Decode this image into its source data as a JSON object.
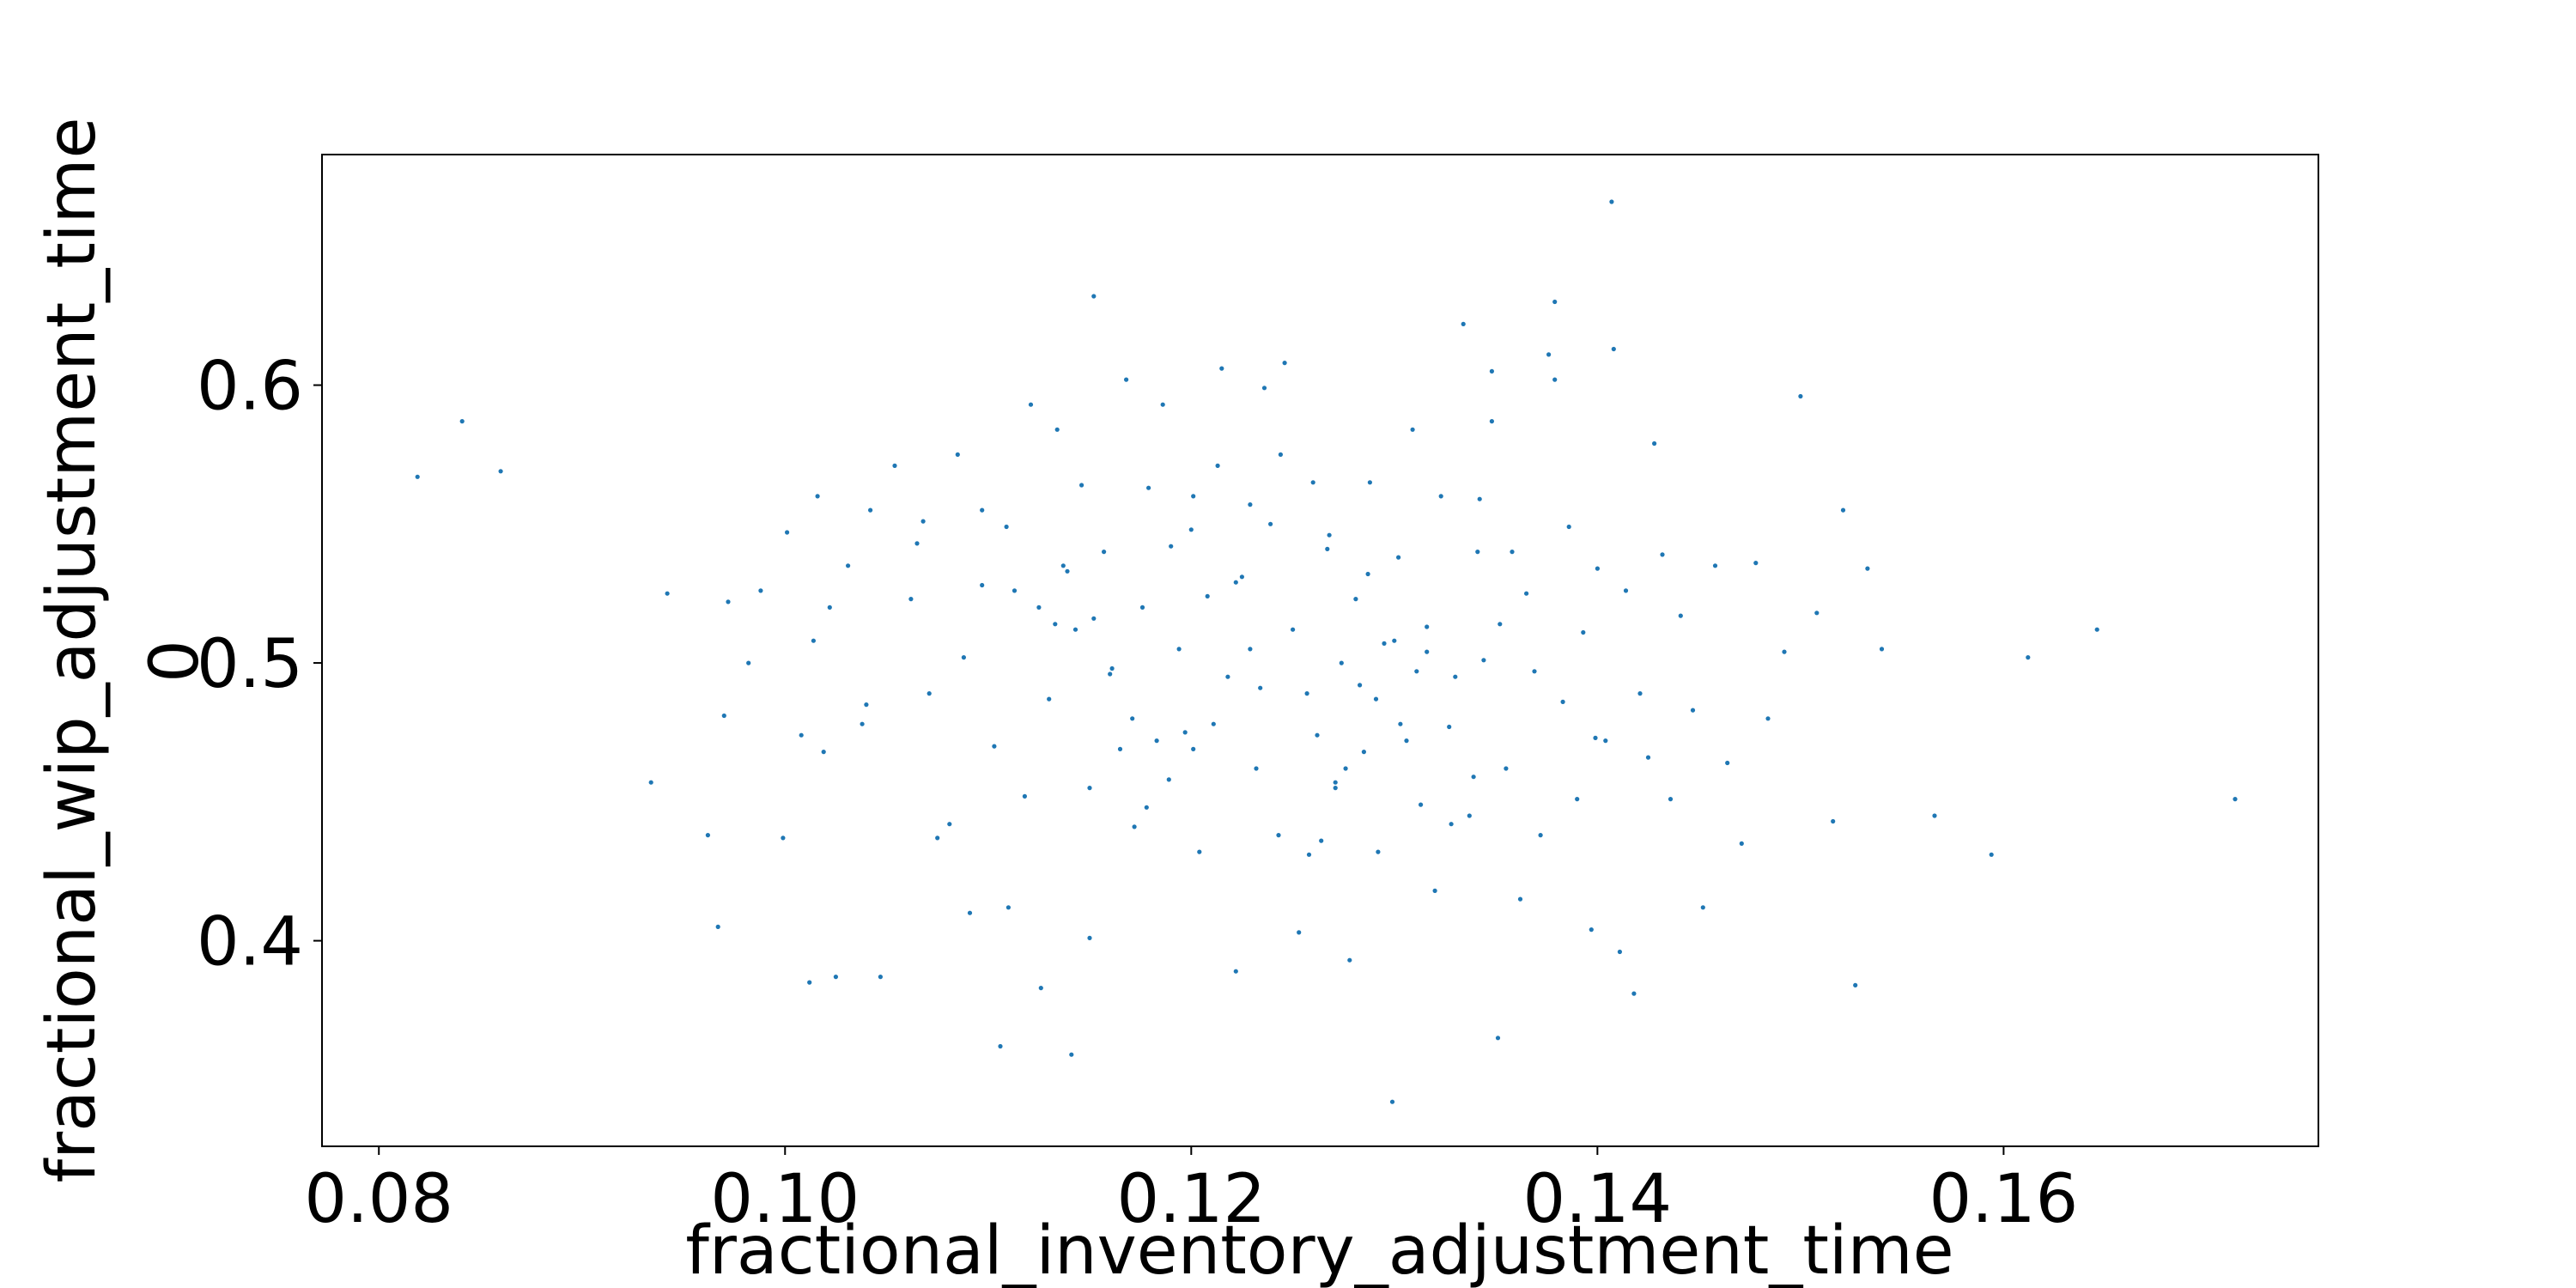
{
  "chart_data": {
    "type": "scatter",
    "title": "",
    "xlabel": "fractional_inventory_adjustment_time",
    "ylabel": "fractional_wip_adjustment_time",
    "ylabel_suffix": "0",
    "xlim": [
      0.0772,
      0.1755
    ],
    "ylim": [
      0.326,
      0.683
    ],
    "x_ticks": [
      0.08,
      0.1,
      0.12,
      0.14,
      0.16
    ],
    "x_tick_labels": [
      "0.08",
      "0.10",
      "0.12",
      "0.14",
      "0.16"
    ],
    "y_ticks": [
      0.4,
      0.5,
      0.6
    ],
    "y_tick_labels": [
      "0.4",
      "0.5",
      "0.6"
    ],
    "grid": false,
    "legend": "none",
    "marker_color": "#1f77b4",
    "marker": "point",
    "series": [
      {
        "x": [
          0.0819,
          0.0841,
          0.086,
          0.0934,
          0.0942,
          0.0962,
          0.0967,
          0.097,
          0.0972,
          0.0982,
          0.0988,
          0.0999,
          0.1001,
          0.1008,
          0.1012,
          0.1014,
          0.1016,
          0.1022,
          0.1025,
          0.1031,
          0.1038,
          0.1042,
          0.1047,
          0.1054,
          0.1062,
          0.1068,
          0.1071,
          0.1075,
          0.1081,
          0.1085,
          0.1088,
          0.1091,
          0.1097,
          0.1103,
          0.1106,
          0.1109,
          0.1113,
          0.1118,
          0.1121,
          0.1126,
          0.113,
          0.1133,
          0.1137,
          0.1141,
          0.1146,
          0.115,
          0.1152,
          0.1157,
          0.1161,
          0.1165,
          0.1168,
          0.1172,
          0.1176,
          0.1179,
          0.1183,
          0.1186,
          0.119,
          0.1194,
          0.1197,
          0.1201,
          0.1204,
          0.1208,
          0.1211,
          0.1215,
          0.1218,
          0.1222,
          0.1225,
          0.1229,
          0.1232,
          0.1236,
          0.1239,
          0.1243,
          0.1246,
          0.125,
          0.1253,
          0.1257,
          0.126,
          0.1264,
          0.1267,
          0.1271,
          0.1274,
          0.1278,
          0.1281,
          0.1285,
          0.1288,
          0.1292,
          0.1295,
          0.1299,
          0.1302,
          0.1306,
          0.1309,
          0.1313,
          0.1316,
          0.132,
          0.1323,
          0.1327,
          0.133,
          0.1334,
          0.1337,
          0.1341,
          0.1344,
          0.1348,
          0.1351,
          0.1355,
          0.1358,
          0.1362,
          0.1365,
          0.1369,
          0.1372,
          0.1376,
          0.1379,
          0.1383,
          0.1386,
          0.139,
          0.1393,
          0.1397,
          0.14,
          0.1404,
          0.1407,
          0.1411,
          0.1414,
          0.1418,
          0.1421,
          0.1425,
          0.1428,
          0.1432,
          0.1436,
          0.1441,
          0.1447,
          0.1452,
          0.1458,
          0.1464,
          0.1471,
          0.1478,
          0.1484,
          0.1492,
          0.15,
          0.1508,
          0.1516,
          0.1521,
          0.1527,
          0.1533,
          0.154,
          0.1566,
          0.1594,
          0.1612,
          0.1646,
          0.1714,
          0.1408,
          0.1379,
          0.1348,
          0.1262,
          0.1283,
          0.1229,
          0.111,
          0.1134,
          0.12,
          0.1271,
          0.1152,
          0.1171,
          0.1222,
          0.1276,
          0.1311,
          0.1342,
          0.1352,
          0.1399,
          0.115,
          0.1097,
          0.1065,
          0.104,
          0.1019,
          0.1213,
          0.1258,
          0.13,
          0.1328,
          0.1244,
          0.1189,
          0.116,
          0.1139,
          0.1125,
          0.1234,
          0.1268,
          0.1291,
          0.1316,
          0.1201,
          0.1178,
          0.1143,
          0.1287,
          0.1303,
          0.1339
        ],
        "y": [
          0.567,
          0.587,
          0.569,
          0.457,
          0.525,
          0.438,
          0.405,
          0.481,
          0.522,
          0.5,
          0.526,
          0.437,
          0.547,
          0.474,
          0.385,
          0.508,
          0.56,
          0.52,
          0.387,
          0.535,
          0.478,
          0.555,
          0.387,
          0.571,
          0.523,
          0.551,
          0.489,
          0.437,
          0.442,
          0.575,
          0.502,
          0.41,
          0.555,
          0.47,
          0.362,
          0.549,
          0.526,
          0.452,
          0.593,
          0.383,
          0.487,
          0.514,
          0.535,
          0.359,
          0.564,
          0.401,
          0.632,
          0.54,
          0.498,
          0.469,
          0.602,
          0.441,
          0.52,
          0.563,
          0.472,
          0.593,
          0.542,
          0.505,
          0.475,
          0.56,
          0.432,
          0.524,
          0.478,
          0.606,
          0.495,
          0.389,
          0.531,
          0.505,
          0.462,
          0.599,
          0.55,
          0.438,
          0.608,
          0.512,
          0.403,
          0.489,
          0.565,
          0.436,
          0.541,
          0.455,
          0.5,
          0.393,
          0.523,
          0.468,
          0.565,
          0.432,
          0.507,
          0.342,
          0.538,
          0.472,
          0.584,
          0.449,
          0.513,
          0.418,
          0.56,
          0.477,
          0.495,
          0.622,
          0.445,
          0.54,
          0.501,
          0.605,
          0.365,
          0.462,
          0.54,
          0.415,
          0.525,
          0.497,
          0.438,
          0.611,
          0.63,
          0.486,
          0.549,
          0.451,
          0.511,
          0.404,
          0.534,
          0.472,
          0.666,
          0.396,
          0.526,
          0.381,
          0.489,
          0.466,
          0.579,
          0.539,
          0.451,
          0.517,
          0.483,
          0.412,
          0.535,
          0.464,
          0.435,
          0.536,
          0.48,
          0.504,
          0.596,
          0.518,
          0.443,
          0.555,
          0.384,
          0.534,
          0.505,
          0.445,
          0.431,
          0.502,
          0.512,
          0.451,
          0.613,
          0.602,
          0.587,
          0.474,
          0.492,
          0.557,
          0.412,
          0.584,
          0.548,
          0.457,
          0.516,
          0.48,
          0.529,
          0.462,
          0.497,
          0.559,
          0.514,
          0.473,
          0.455,
          0.528,
          0.543,
          0.485,
          0.468,
          0.571,
          0.431,
          0.508,
          0.442,
          0.575,
          0.458,
          0.496,
          0.533,
          0.52,
          0.491,
          0.546,
          0.487,
          0.504,
          0.469,
          0.448,
          0.512,
          0.532,
          0.478,
          0.459
        ]
      }
    ]
  }
}
